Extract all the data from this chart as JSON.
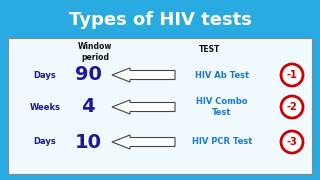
{
  "title": "Types of HIV tests",
  "title_color": "#ffffff",
  "title_bg_color": "#29aae1",
  "body_bg_color": "#f0faff",
  "outer_bg_color": "#29aae1",
  "header_window": "Window\nperiod",
  "header_test": "TEST",
  "rows": [
    {
      "unit": "Days",
      "value": "90",
      "test": "HIV Ab Test",
      "num": "-1"
    },
    {
      "unit": "Weeks",
      "value": "4",
      "test": "HIV Combo\nTest",
      "num": "-2"
    },
    {
      "unit": "Days",
      "value": "10",
      "test": "HIV PCR Test",
      "num": "-3"
    }
  ],
  "unit_color": "#1a1a8c",
  "value_color": "#1a1a99",
  "test_color": "#1a7acc",
  "arrow_face": "#ffffff",
  "arrow_edge": "#444444",
  "circle_edge": "#cc0000",
  "circle_face": "#ffffff",
  "num_color": "#cc0000",
  "header_color": "#111111"
}
